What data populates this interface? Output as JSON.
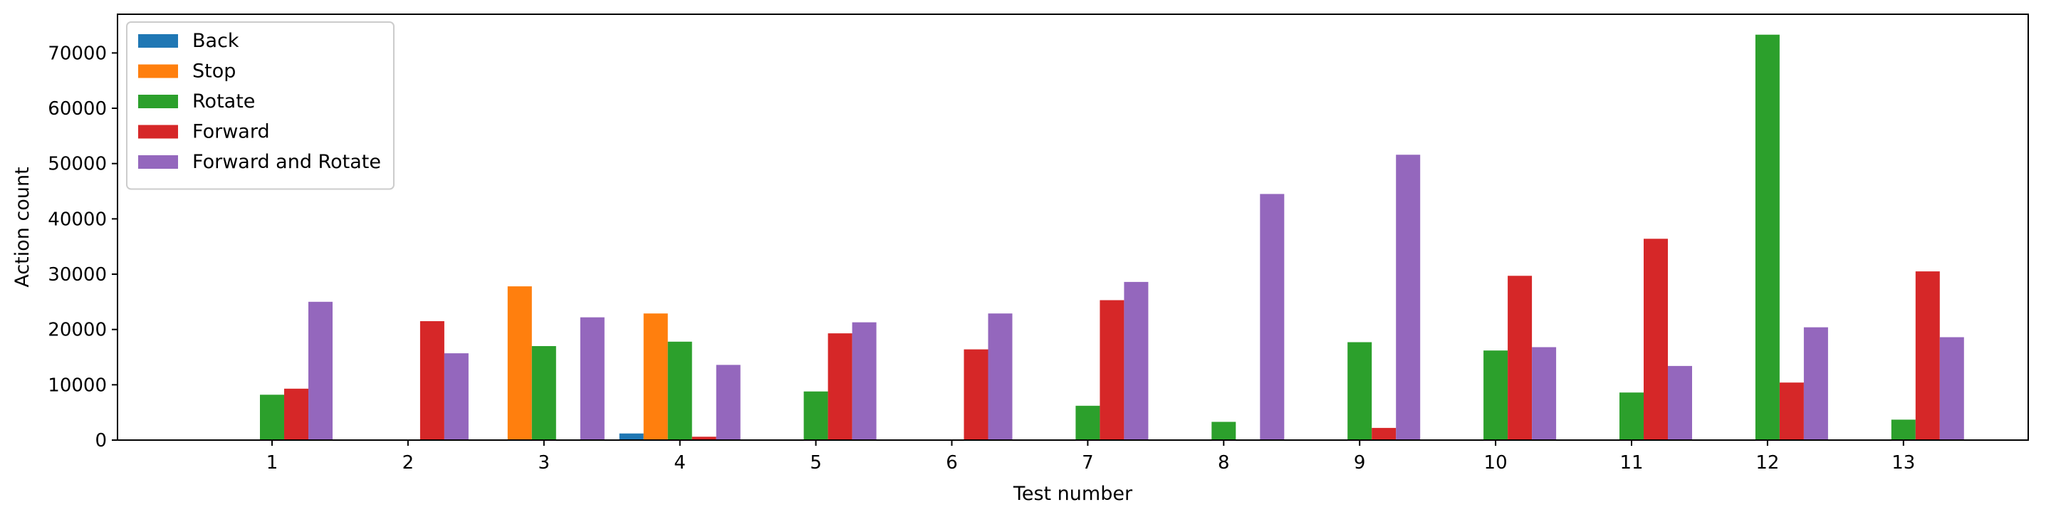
{
  "chart_data": {
    "type": "bar",
    "title": "",
    "xlabel": "Test number",
    "ylabel": "Action count",
    "categories": [
      "1",
      "2",
      "3",
      "4",
      "5",
      "6",
      "7",
      "8",
      "9",
      "10",
      "11",
      "12",
      "13"
    ],
    "ylim": [
      0,
      77000
    ],
    "yticks": [
      0,
      10000,
      20000,
      30000,
      40000,
      50000,
      60000,
      70000
    ],
    "grid": false,
    "legend_position": "top-left",
    "series": [
      {
        "name": "Back",
        "color": "#1f77b4",
        "values": [
          0,
          0,
          0,
          1200,
          0,
          0,
          0,
          0,
          0,
          0,
          0,
          0,
          0
        ]
      },
      {
        "name": "Stop",
        "color": "#ff7f0e",
        "values": [
          0,
          0,
          27800,
          22900,
          0,
          0,
          0,
          0,
          0,
          0,
          0,
          0,
          0
        ]
      },
      {
        "name": "Rotate",
        "color": "#2ca02c",
        "values": [
          8200,
          0,
          17000,
          17800,
          8800,
          0,
          6200,
          3300,
          17700,
          16200,
          8600,
          73300,
          3700
        ]
      },
      {
        "name": "Forward",
        "color": "#d62728",
        "values": [
          9300,
          21500,
          0,
          600,
          19300,
          16400,
          25300,
          0,
          2200,
          29700,
          36400,
          10400,
          30500
        ]
      },
      {
        "name": "Forward and Rotate",
        "color": "#9467bd",
        "values": [
          25000,
          15700,
          22200,
          13600,
          21300,
          22900,
          28600,
          44500,
          51600,
          16800,
          13400,
          20400,
          18600
        ]
      }
    ]
  }
}
